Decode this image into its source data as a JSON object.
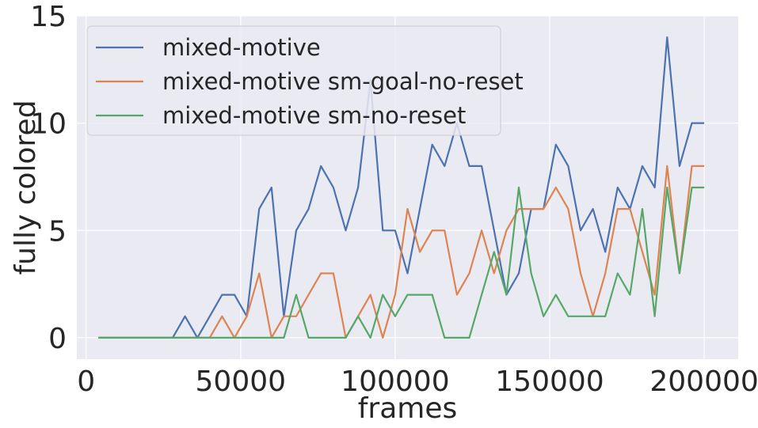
{
  "chart_data": {
    "type": "line",
    "title": "",
    "xlabel": "frames",
    "ylabel": "fully colored",
    "xlim": [
      -3000,
      211000
    ],
    "ylim": [
      -1,
      15
    ],
    "xticks": [
      0,
      50000,
      100000,
      150000,
      200000
    ],
    "yticks": [
      0,
      5,
      10,
      15
    ],
    "grid": true,
    "legend_position": "top-left",
    "x": [
      4000,
      8000,
      12000,
      16000,
      20000,
      24000,
      28000,
      32000,
      36000,
      40000,
      44000,
      48000,
      52000,
      56000,
      60000,
      64000,
      68000,
      72000,
      76000,
      80000,
      84000,
      88000,
      92000,
      96000,
      100000,
      104000,
      108000,
      112000,
      116000,
      120000,
      124000,
      128000,
      132000,
      136000,
      140000,
      144000,
      148000,
      152000,
      156000,
      160000,
      164000,
      168000,
      172000,
      176000,
      180000,
      184000,
      188000,
      192000,
      196000,
      200000
    ],
    "series": [
      {
        "name": "mixed-motive",
        "color": "#4c72b0",
        "values": [
          0,
          0,
          0,
          0,
          0,
          0,
          0,
          1,
          0,
          1,
          2,
          2,
          1,
          6,
          7,
          1,
          5,
          6,
          8,
          7,
          5,
          7,
          12,
          5,
          5,
          3,
          6,
          9,
          8,
          10,
          8,
          8,
          5,
          2,
          3,
          6,
          6,
          9,
          8,
          5,
          6,
          4,
          7,
          6,
          8,
          7,
          14,
          8,
          10,
          10
        ]
      },
      {
        "name": "mixed-motive sm-goal-no-reset",
        "color": "#dd8452",
        "values": [
          0,
          0,
          0,
          0,
          0,
          0,
          0,
          0,
          0,
          0,
          1,
          0,
          1,
          3,
          0,
          1,
          1,
          2,
          3,
          3,
          0,
          1,
          2,
          0,
          2,
          6,
          4,
          5,
          5,
          2,
          3,
          5,
          3,
          5,
          6,
          6,
          6,
          7,
          6,
          3,
          1,
          3,
          6,
          6,
          4,
          2,
          8,
          3,
          8,
          8
        ]
      },
      {
        "name": "mixed-motive sm-no-reset",
        "color": "#55a868",
        "values": [
          0,
          0,
          0,
          0,
          0,
          0,
          0,
          0,
          0,
          0,
          0,
          0,
          0,
          0,
          0,
          0,
          2,
          0,
          0,
          0,
          0,
          1,
          0,
          2,
          1,
          2,
          2,
          2,
          0,
          0,
          0,
          2,
          4,
          2,
          7,
          3,
          1,
          2,
          1,
          1,
          1,
          1,
          3,
          2,
          6,
          1,
          7,
          3,
          7,
          7
        ]
      }
    ]
  }
}
